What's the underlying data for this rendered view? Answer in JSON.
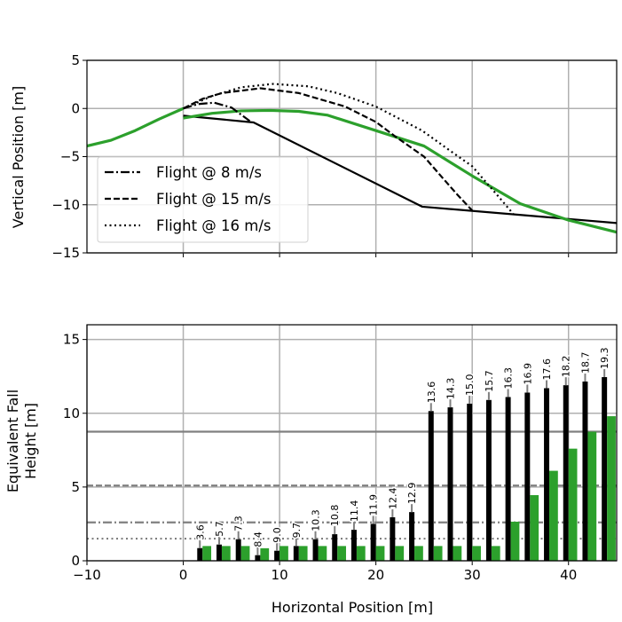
{
  "chart_data": [
    {
      "type": "line",
      "ylabel": "Vertical Position [m]",
      "xlabel": "",
      "xlim": [
        -10,
        45
      ],
      "ylim": [
        -15,
        5
      ],
      "xticks": [
        0,
        10,
        20,
        30,
        40
      ],
      "yticks": [
        5,
        0,
        -5,
        -10,
        -15
      ],
      "ytick_labels": [
        "5",
        "0",
        "−5",
        "−10",
        "−15"
      ],
      "grid": true,
      "legend_placement": "center-left",
      "series": [
        {
          "name": "terrain",
          "color": "#000000",
          "style": "solid",
          "x": [
            0,
            7.3,
            24.8,
            45
          ],
          "y": [
            -0.75,
            -1.45,
            -10.2,
            -11.9
          ]
        },
        {
          "name": "green-left",
          "color": "#2ca02c",
          "style": "solid",
          "x": [
            -10,
            -7.5,
            -5,
            -2.5,
            0
          ],
          "y": [
            -3.9,
            -3.3,
            -2.3,
            -1.1,
            0
          ]
        },
        {
          "name": "green-right",
          "color": "#2ca02c",
          "style": "solid",
          "x": [
            0,
            3,
            6,
            9,
            12,
            15,
            20,
            25,
            30,
            35,
            40,
            45
          ],
          "y": [
            -1.0,
            -0.5,
            -0.25,
            -0.2,
            -0.3,
            -0.7,
            -2.3,
            -3.9,
            -7.0,
            -9.9,
            -11.6,
            -12.85
          ]
        },
        {
          "name": "Flight @ 8 m/s",
          "color": "#000000",
          "style": "dashdot",
          "x": [
            0,
            1.5,
            3.2,
            5,
            6.9
          ],
          "y": [
            0,
            0.45,
            0.6,
            0.1,
            -1.3
          ]
        },
        {
          "name": "Flight @ 15 m/s",
          "color": "#000000",
          "style": "dashed",
          "x": [
            0,
            2,
            4,
            8,
            12,
            16.8,
            20,
            22,
            25,
            27,
            28.5,
            30
          ],
          "y": [
            0,
            1.0,
            1.6,
            2.1,
            1.6,
            0.2,
            -1.4,
            -2.9,
            -5.0,
            -7.3,
            -9.0,
            -10.6
          ]
        },
        {
          "name": "Flight @ 16 m/s",
          "color": "#000000",
          "style": "dotted",
          "x": [
            0,
            3,
            6,
            9.3,
            13,
            16,
            20,
            24.8,
            28,
            30,
            32.6,
            34.3
          ],
          "y": [
            0,
            1.3,
            2.2,
            2.55,
            2.3,
            1.6,
            0.2,
            -2.3,
            -4.6,
            -6.0,
            -9.0,
            -11.0
          ]
        }
      ],
      "legend": [
        "Flight @ 8 m/s",
        "Flight @ 15 m/s",
        "Flight @ 16 m/s"
      ]
    },
    {
      "type": "bar",
      "ylabel_line1": "Equivalent Fall",
      "ylabel_line2": "Height [m]",
      "xlabel": "Horizontal Position [m]",
      "xlim": [
        -10,
        45
      ],
      "ylim": [
        0,
        16
      ],
      "xticks": [
        -10,
        0,
        10,
        20,
        30,
        40
      ],
      "xtick_labels": [
        "−10",
        "0",
        "10",
        "20",
        "30",
        "40"
      ],
      "yticks": [
        0,
        5,
        10,
        15
      ],
      "grid": true,
      "x": [
        2,
        4,
        6,
        8,
        10,
        12,
        14,
        16,
        18,
        20,
        22,
        24,
        26,
        28,
        30,
        32,
        34,
        36,
        38,
        40,
        42,
        44
      ],
      "series": [
        {
          "name": "black",
          "color": "#000000",
          "values": [
            0.86,
            1.1,
            1.46,
            0.38,
            0.68,
            1.0,
            1.46,
            1.8,
            2.1,
            2.5,
            2.95,
            3.3,
            10.15,
            10.4,
            10.65,
            10.9,
            11.1,
            11.4,
            11.7,
            11.9,
            12.15,
            12.45
          ]
        },
        {
          "name": "green",
          "color": "#2ca02c",
          "values": [
            1.0,
            1.0,
            1.0,
            0.85,
            1.0,
            1.0,
            1.0,
            1.0,
            1.0,
            1.0,
            1.0,
            1.0,
            1.0,
            1.0,
            1.0,
            1.0,
            2.65,
            4.45,
            6.1,
            7.6,
            8.75,
            9.8
          ]
        }
      ],
      "bar_labels": [
        "3.6",
        "5.7",
        "7.3",
        "8.4",
        "9.0",
        "9.7",
        "10.3",
        "10.8",
        "11.4",
        "11.9",
        "12.4",
        "12.9",
        "13.6",
        "14.3",
        "15.0",
        "15.7",
        "16.3",
        "16.9",
        "17.6",
        "18.2",
        "18.7",
        "19.3"
      ],
      "hlines": [
        {
          "y": 8.75,
          "style": "solid",
          "color": "#808080"
        },
        {
          "y": 5.1,
          "style": "dashed",
          "color": "#808080"
        },
        {
          "y": 2.6,
          "style": "dashdot",
          "color": "#808080"
        },
        {
          "y": 1.5,
          "style": "dotted",
          "color": "#808080"
        }
      ]
    }
  ]
}
